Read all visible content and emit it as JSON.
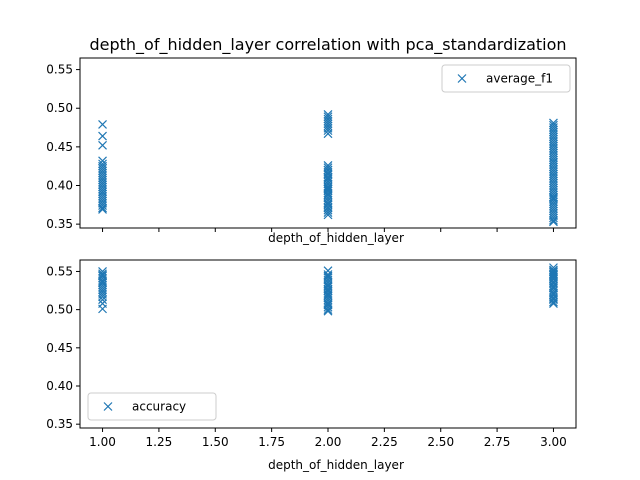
{
  "title": "depth_of_hidden_layer correlation with pca_standardization",
  "colors": {
    "marker": "#1f77b4",
    "axes": "#000000",
    "legend_border": "#cccccc"
  },
  "chart_data": [
    {
      "type": "scatter",
      "marker": "x",
      "xlabel": "depth_of_hidden_layer",
      "ylabel": "",
      "xlim": [
        0.9,
        3.1
      ],
      "ylim": [
        0.345,
        0.565
      ],
      "xticks": [
        1.0,
        1.25,
        1.5,
        1.75,
        2.0,
        2.25,
        2.5,
        2.75,
        3.0
      ],
      "xtick_labels_shown": false,
      "yticks": [
        0.35,
        0.4,
        0.45,
        0.5,
        0.55
      ],
      "ytick_labels": [
        "0.35",
        "0.40",
        "0.45",
        "0.50",
        "0.55"
      ],
      "legend": {
        "position": "upper right",
        "entries": [
          "average_f1"
        ]
      },
      "series": [
        {
          "name": "average_f1",
          "x": [
            1,
            1,
            1,
            1,
            1,
            1,
            1,
            1,
            1,
            1,
            1,
            1,
            1,
            1,
            1,
            1,
            1,
            1,
            1,
            1,
            1,
            1,
            1,
            1,
            1,
            1,
            2,
            2,
            2,
            2,
            2,
            2,
            2,
            2,
            2,
            2,
            2,
            2,
            2,
            2,
            2,
            2,
            2,
            2,
            2,
            2,
            2,
            2,
            2,
            2,
            2,
            2,
            2,
            2,
            2,
            2,
            2,
            2,
            2,
            2,
            2,
            2,
            2,
            2,
            2,
            2,
            3,
            3,
            3,
            3,
            3,
            3,
            3,
            3,
            3,
            3,
            3,
            3,
            3,
            3,
            3,
            3,
            3,
            3,
            3,
            3,
            3,
            3,
            3,
            3,
            3,
            3,
            3,
            3,
            3,
            3,
            3,
            3,
            3,
            3,
            3,
            3,
            3,
            3,
            3,
            3,
            3,
            3,
            3,
            3,
            3,
            3
          ],
          "y": [
            0.479,
            0.464,
            0.452,
            0.432,
            0.428,
            0.425,
            0.422,
            0.419,
            0.416,
            0.413,
            0.41,
            0.407,
            0.404,
            0.401,
            0.398,
            0.395,
            0.392,
            0.389,
            0.386,
            0.383,
            0.38,
            0.377,
            0.374,
            0.371,
            0.369,
            0.392,
            0.492,
            0.489,
            0.486,
            0.483,
            0.48,
            0.477,
            0.474,
            0.471,
            0.467,
            0.426,
            0.423,
            0.42,
            0.417,
            0.414,
            0.411,
            0.408,
            0.405,
            0.402,
            0.399,
            0.396,
            0.393,
            0.39,
            0.387,
            0.384,
            0.381,
            0.378,
            0.375,
            0.372,
            0.368,
            0.365,
            0.362,
            0.371,
            0.398,
            0.41,
            0.42,
            0.388,
            0.376,
            0.395,
            0.405,
            0.415,
            0.481,
            0.478,
            0.475,
            0.472,
            0.469,
            0.466,
            0.463,
            0.46,
            0.457,
            0.454,
            0.451,
            0.448,
            0.445,
            0.442,
            0.439,
            0.436,
            0.433,
            0.43,
            0.427,
            0.424,
            0.421,
            0.418,
            0.415,
            0.412,
            0.409,
            0.406,
            0.403,
            0.4,
            0.397,
            0.394,
            0.391,
            0.388,
            0.385,
            0.382,
            0.379,
            0.376,
            0.373,
            0.37,
            0.367,
            0.364,
            0.361,
            0.358,
            0.355,
            0.353,
            0.384,
            0.43
          ]
        }
      ]
    },
    {
      "type": "scatter",
      "marker": "x",
      "xlabel": "depth_of_hidden_layer",
      "ylabel": "",
      "xlim": [
        0.9,
        3.1
      ],
      "ylim": [
        0.345,
        0.565
      ],
      "xticks": [
        1.0,
        1.25,
        1.5,
        1.75,
        2.0,
        2.25,
        2.5,
        2.75,
        3.0
      ],
      "xtick_labels": [
        "1.00",
        "1.25",
        "1.50",
        "1.75",
        "2.00",
        "2.25",
        "2.50",
        "2.75",
        "3.00"
      ],
      "yticks": [
        0.35,
        0.4,
        0.45,
        0.5,
        0.55
      ],
      "ytick_labels": [
        "0.35",
        "0.40",
        "0.45",
        "0.50",
        "0.55"
      ],
      "legend": {
        "position": "lower left",
        "entries": [
          "accuracy"
        ]
      },
      "series": [
        {
          "name": "accuracy",
          "x": [
            1,
            1,
            1,
            1,
            1,
            1,
            1,
            1,
            1,
            1,
            1,
            1,
            1,
            1,
            1,
            1,
            1,
            2,
            2,
            2,
            2,
            2,
            2,
            2,
            2,
            2,
            2,
            2,
            2,
            2,
            2,
            2,
            2,
            2,
            2,
            2,
            2,
            2,
            2,
            2,
            3,
            3,
            3,
            3,
            3,
            3,
            3,
            3,
            3,
            3,
            3,
            3,
            3,
            3,
            3,
            3,
            3,
            3,
            3,
            3,
            3,
            3,
            3,
            3,
            3
          ],
          "y": [
            0.55,
            0.547,
            0.544,
            0.541,
            0.538,
            0.535,
            0.532,
            0.529,
            0.526,
            0.523,
            0.52,
            0.517,
            0.513,
            0.508,
            0.501,
            0.545,
            0.536,
            0.551,
            0.546,
            0.542,
            0.539,
            0.536,
            0.533,
            0.53,
            0.527,
            0.524,
            0.521,
            0.518,
            0.515,
            0.512,
            0.509,
            0.506,
            0.503,
            0.5,
            0.498,
            0.544,
            0.531,
            0.519,
            0.507,
            0.525,
            0.555,
            0.552,
            0.549,
            0.546,
            0.543,
            0.54,
            0.537,
            0.534,
            0.531,
            0.528,
            0.525,
            0.522,
            0.519,
            0.516,
            0.513,
            0.51,
            0.508,
            0.55,
            0.547,
            0.541,
            0.535,
            0.529,
            0.52,
            0.514,
            0.545
          ]
        }
      ]
    }
  ]
}
